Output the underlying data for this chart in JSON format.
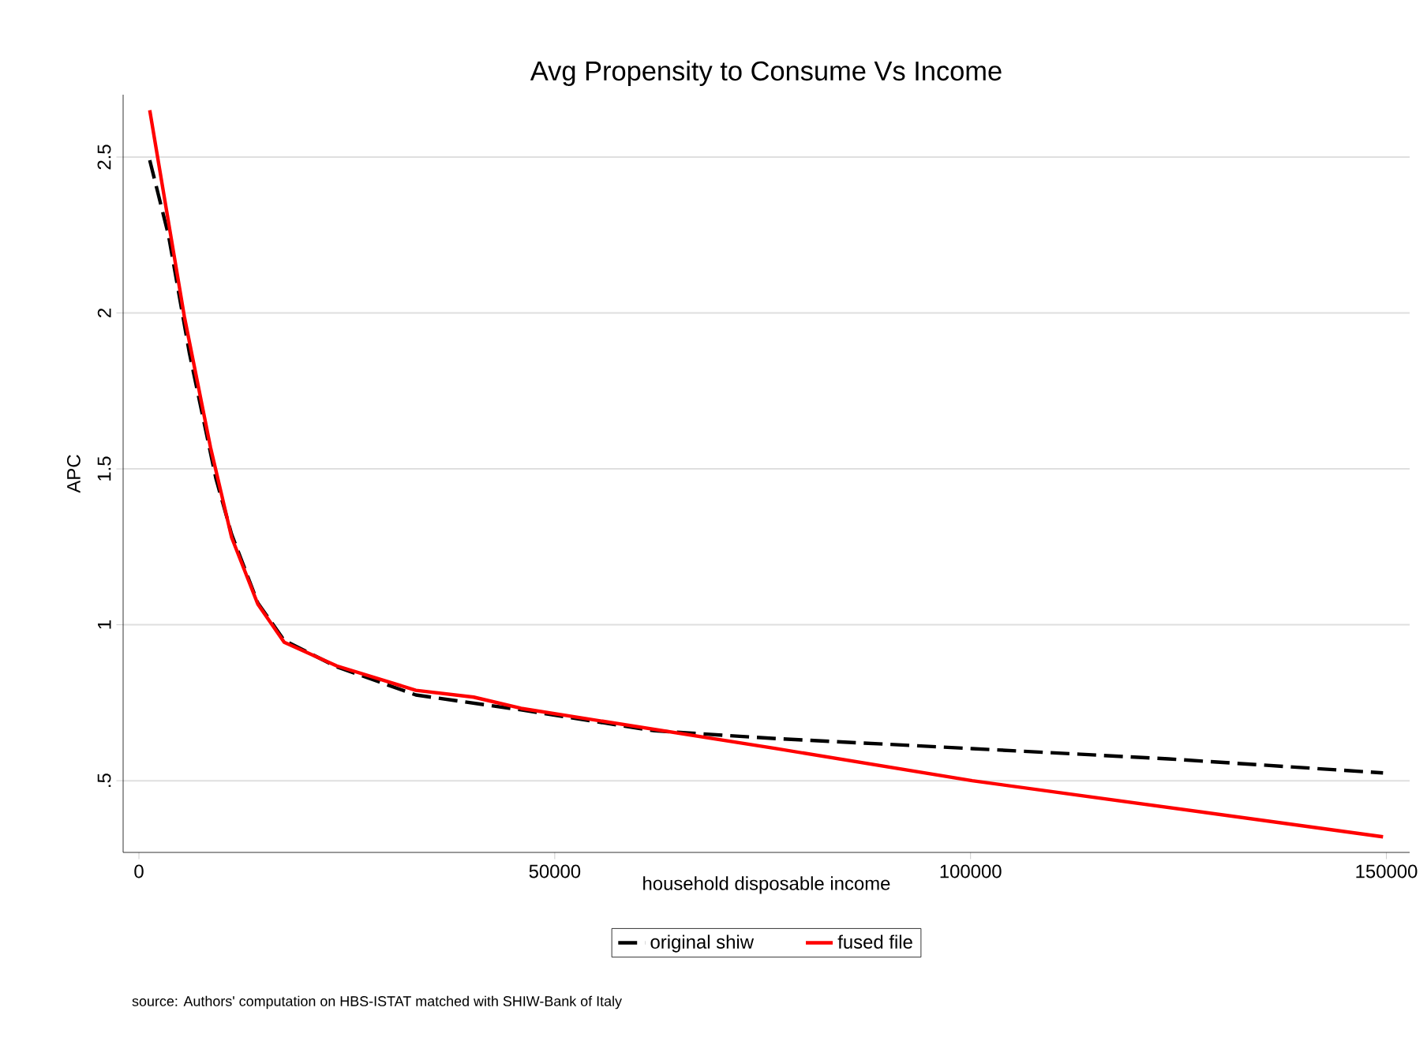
{
  "chart_data": {
    "type": "line",
    "title": "Avg Propensity to Consume Vs Income",
    "xlabel": "household disposable income",
    "ylabel": "APC",
    "annotations": [
      "source: Authors' computation on HBS-ISTAT matched with SHIW-Bank of Italy"
    ],
    "xlim": [
      -1900,
      152800
    ],
    "ylim": [
      0.27,
      2.7
    ],
    "xticks": [
      0,
      50000,
      100000,
      150000
    ],
    "yticks": [
      {
        "value": 0.5,
        "label": ".5"
      },
      1,
      1.5,
      2,
      2.5
    ],
    "grid": "y",
    "legend": "bottom",
    "marker": "none",
    "series": [
      {
        "name": "original shiw",
        "color": "#000000",
        "line_style": "dashed",
        "x": [
          1300,
          3550,
          6080,
          9250,
          11150,
          14300,
          17470,
          23800,
          33300,
          45950,
          62000,
          76600,
          100200,
          123800,
          149600
        ],
        "values": [
          2.49,
          2.25,
          1.87,
          1.47,
          1.29,
          1.07,
          0.95,
          0.865,
          0.775,
          0.727,
          0.66,
          0.635,
          0.603,
          0.57,
          0.525
        ]
      },
      {
        "name": "fused file",
        "color": "#ff0000",
        "line_style": "solid",
        "x": [
          1300,
          5450,
          8600,
          11150,
          14300,
          17470,
          23800,
          33300,
          40250,
          45950,
          76600,
          100200,
          149600
        ],
        "values": [
          2.65,
          1.99,
          1.57,
          1.28,
          1.066,
          0.944,
          0.868,
          0.79,
          0.768,
          0.732,
          0.603,
          0.5,
          0.32
        ]
      }
    ]
  }
}
